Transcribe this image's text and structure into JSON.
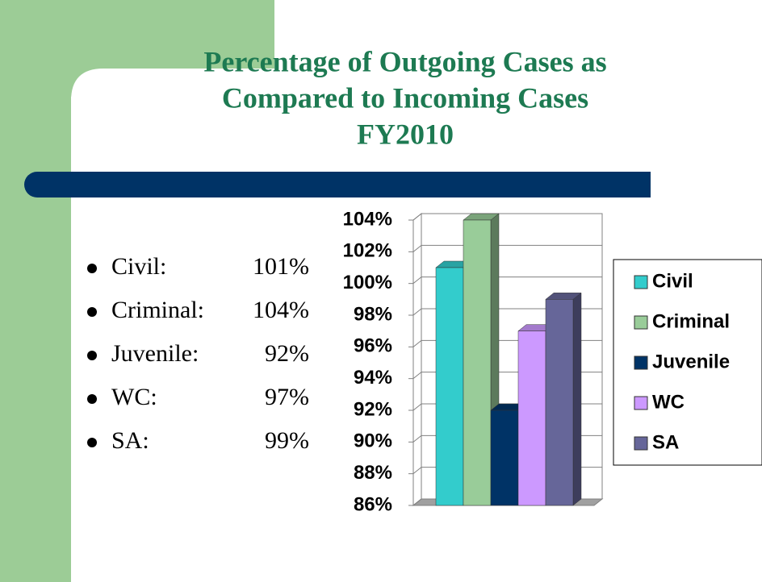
{
  "chart_data": {
    "type": "bar3d",
    "title": [
      "Percentage of Outgoing Cases as",
      "Compared to Incoming Cases",
      "FY2010"
    ],
    "series": [
      {
        "name": "Civil",
        "color": "#33cccc",
        "values": [
          101
        ],
        "value_labels": [
          "101%"
        ]
      },
      {
        "name": "Criminal",
        "color": "#99cc99",
        "values": [
          104
        ],
        "value_labels": [
          "104%"
        ]
      },
      {
        "name": "Juvenile",
        "color": "#003366",
        "values": [
          92
        ],
        "value_labels": [
          "92%"
        ]
      },
      {
        "name": "WC",
        "color": "#cc99ff",
        "values": [
          97
        ],
        "value_labels": [
          "97%"
        ]
      },
      {
        "name": "SA",
        "color": "#666699",
        "values": [
          99
        ],
        "value_labels": [
          "99%"
        ]
      }
    ],
    "ylim": [
      86,
      104
    ],
    "yticks": [
      {
        "value": 86,
        "label": "86%"
      },
      {
        "value": 88,
        "label": "88%"
      },
      {
        "value": 90,
        "label": "90%"
      },
      {
        "value": 92,
        "label": "92%"
      },
      {
        "value": 94,
        "label": "94%"
      },
      {
        "value": 96,
        "label": "96%"
      },
      {
        "value": 98,
        "label": "98%"
      },
      {
        "value": 100,
        "label": "100%"
      },
      {
        "value": 102,
        "label": "102%"
      },
      {
        "value": 104,
        "label": "104%"
      }
    ],
    "grid": true,
    "legend": "right"
  },
  "bullet_labels": [
    "Civil:",
    "Criminal:",
    "Juvenile:",
    "WC:",
    "SA:"
  ]
}
